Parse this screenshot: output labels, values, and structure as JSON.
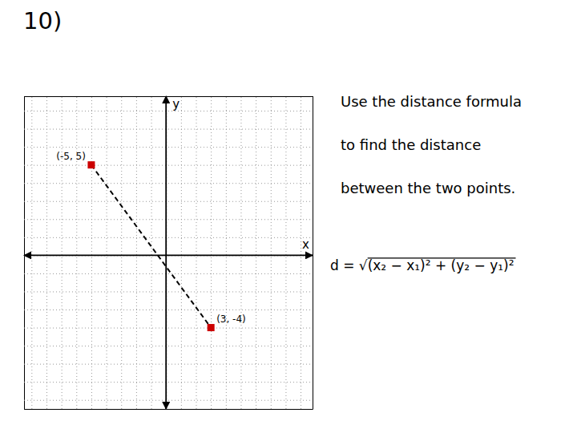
{
  "chart_data": {
    "type": "scatter",
    "title": "10)",
    "x_label": "x",
    "y_label": "y",
    "x": [
      -5,
      3
    ],
    "values": [
      5,
      -4
    ],
    "value_labels": [
      "(-5, 5)",
      "(3, -4)"
    ],
    "data_labels": true,
    "color": "#cc0000",
    "marker": "square",
    "line_style": "dashed",
    "xlim": [
      -9.5,
      9.8
    ],
    "ylim": [
      -8.5,
      8.8
    ],
    "xticks": [
      -9,
      -8,
      -7,
      -6,
      -5,
      -4,
      -3,
      -2,
      -1,
      0,
      1,
      2,
      3,
      4,
      5,
      6,
      7,
      8,
      9
    ],
    "yticks": [
      -8,
      -7,
      -6,
      -5,
      -4,
      -3,
      -2,
      -1,
      0,
      1,
      2,
      3,
      4,
      5,
      6,
      7,
      8
    ],
    "grid": true,
    "tick_labels": false,
    "annotations": [
      "Use the distance formula",
      "to find the distance",
      "between the two points.",
      "d = √(x₂ − x₁)² + (y₂ − y₁)²"
    ]
  }
}
